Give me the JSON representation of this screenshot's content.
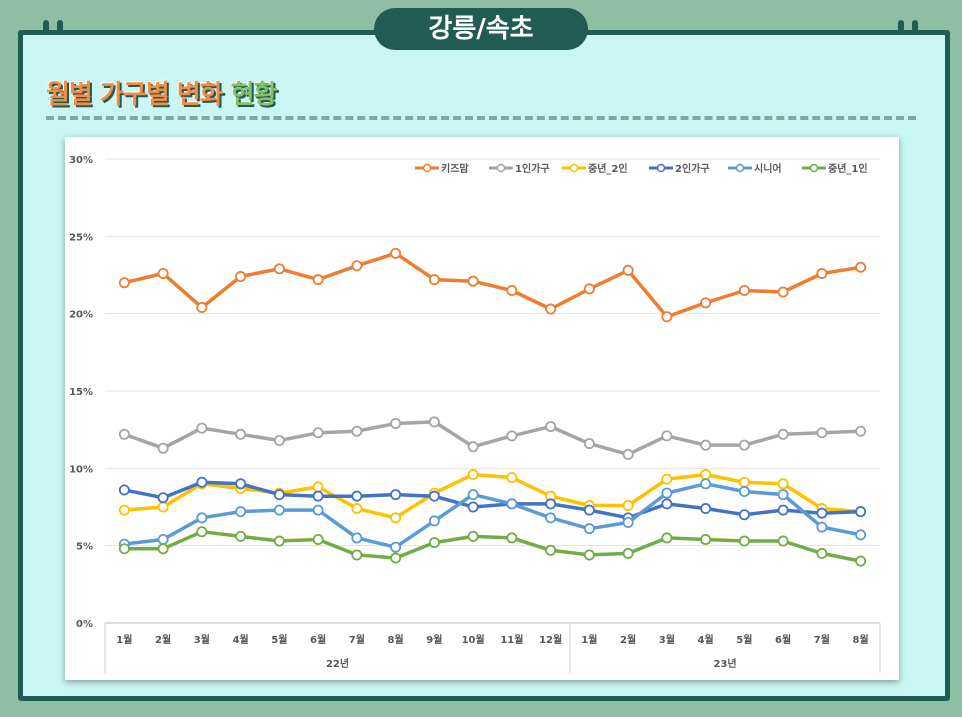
{
  "header": {
    "title": "강릉/속초"
  },
  "section": {
    "title_main": "월별 가구별 변화",
    "title_highlight": "현황"
  },
  "chart_data": {
    "type": "line",
    "title": "",
    "xlabel": "",
    "ylabel": "",
    "ylim": [
      0,
      30
    ],
    "y_ticks": [
      "0%",
      "5%",
      "10%",
      "15%",
      "20%",
      "25%",
      "30%"
    ],
    "y_tick_values": [
      0,
      5,
      10,
      15,
      20,
      25,
      30
    ],
    "grid": true,
    "legend_position": "top-right",
    "categories": [
      "1월",
      "2월",
      "3월",
      "4월",
      "5월",
      "6월",
      "7월",
      "8월",
      "9월",
      "10월",
      "11월",
      "12월",
      "1월",
      "2월",
      "3월",
      "4월",
      "5월",
      "6월",
      "7월",
      "8월"
    ],
    "groups": [
      {
        "label": "22년",
        "count": 12
      },
      {
        "label": "23년",
        "count": 8
      }
    ],
    "series": [
      {
        "name": "키즈맘",
        "color": "#ed7d31",
        "values": [
          22.0,
          22.6,
          20.4,
          22.4,
          22.9,
          22.2,
          23.1,
          23.9,
          22.2,
          22.1,
          21.5,
          20.3,
          21.6,
          22.8,
          19.8,
          20.7,
          21.5,
          21.4,
          22.6,
          23.0
        ]
      },
      {
        "name": "1인가구",
        "color": "#a5a5a5",
        "values": [
          12.2,
          11.3,
          12.6,
          12.2,
          11.8,
          12.3,
          12.4,
          12.9,
          13.0,
          11.4,
          12.1,
          12.7,
          11.6,
          10.9,
          12.1,
          11.5,
          11.5,
          12.2,
          12.3,
          12.4
        ]
      },
      {
        "name": "중년_2인",
        "color": "#ffc000",
        "values": [
          7.3,
          7.5,
          9.0,
          8.7,
          8.4,
          8.8,
          7.4,
          6.8,
          8.4,
          9.6,
          9.4,
          8.2,
          7.6,
          7.6,
          9.3,
          9.6,
          9.1,
          9.0,
          7.4,
          7.2
        ]
      },
      {
        "name": "2인가구",
        "color": "#4472c4",
        "values": [
          8.6,
          8.1,
          9.1,
          9.0,
          8.3,
          8.2,
          8.2,
          8.3,
          8.2,
          7.5,
          7.7,
          7.7,
          7.3,
          6.8,
          7.7,
          7.4,
          7.0,
          7.3,
          7.1,
          7.2
        ]
      },
      {
        "name": "시니어",
        "color": "#5b9bd5",
        "values": [
          5.1,
          5.4,
          6.8,
          7.2,
          7.3,
          7.3,
          5.5,
          4.9,
          6.6,
          8.3,
          7.7,
          6.8,
          6.1,
          6.5,
          8.4,
          9.0,
          8.5,
          8.3,
          6.2,
          5.7
        ]
      },
      {
        "name": "중년_1인",
        "color": "#70ad47",
        "values": [
          4.8,
          4.8,
          5.9,
          5.6,
          5.3,
          5.4,
          4.4,
          4.2,
          5.2,
          5.6,
          5.5,
          4.7,
          4.4,
          4.5,
          5.5,
          5.4,
          5.3,
          5.3,
          4.5,
          4.0
        ]
      }
    ]
  }
}
